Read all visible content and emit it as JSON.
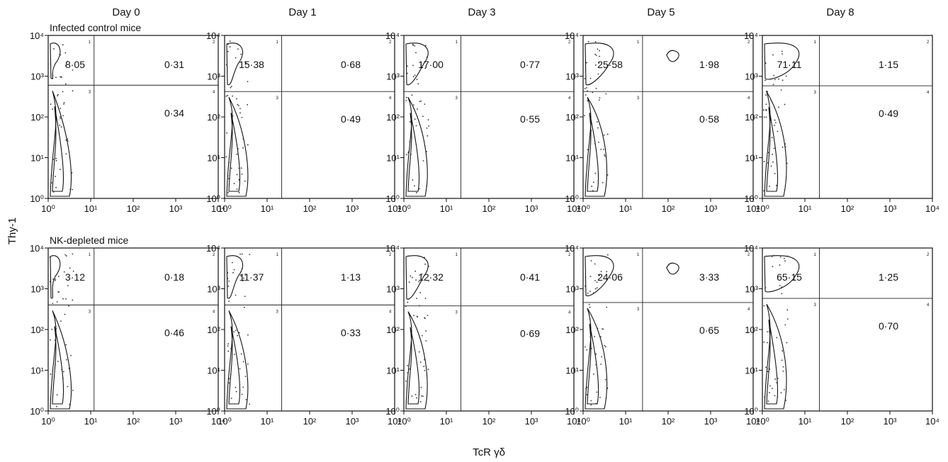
{
  "figure": {
    "y_axis_label": "Thy-1",
    "x_axis_label": "TcR γδ"
  },
  "days": [
    "Day 0",
    "Day 1",
    "Day 3",
    "Day 5",
    "Day 8"
  ],
  "groups": [
    "Infected control mice",
    "NK-depleted mice"
  ],
  "tick_labels": [
    "10⁰",
    "10¹",
    "10²",
    "10³",
    "10⁴"
  ],
  "quadrant_numbers": [
    "1",
    "2",
    "3",
    "4"
  ],
  "chart_data": {
    "type": "scatter",
    "description": "Flow cytometry contour plots, Thy-1 vs TcR γδ, log scales 10^0 to 10^4",
    "x_axis": {
      "label": "TcR γδ",
      "scale": "log",
      "range": [
        1,
        10000
      ]
    },
    "y_axis": {
      "label": "Thy-1",
      "scale": "log",
      "range": [
        1,
        10000
      ]
    },
    "panels": [
      {
        "group": "Infected control mice",
        "day": "Day 0",
        "q1": "8·05",
        "q2": "0·31",
        "q4": "0·34",
        "gate_x": 12,
        "gate_y": 600
      },
      {
        "group": "Infected control mice",
        "day": "Day 1",
        "q1": "15·38",
        "q2": "0·68",
        "q4": "0·49",
        "gate_x": 22,
        "gate_y": 420
      },
      {
        "group": "Infected control mice",
        "day": "Day 3",
        "q1": "17·00",
        "q2": "0·77",
        "q4": "0·55",
        "gate_x": 22,
        "gate_y": 420
      },
      {
        "group": "Infected control mice",
        "day": "Day 5",
        "q1": "25·58",
        "q2": "1·98",
        "q4": "0·58",
        "gate_x": 25,
        "gate_y": 420
      },
      {
        "group": "Infected control mice",
        "day": "Day 8",
        "q1": "71·11",
        "q2": "1·15",
        "q4": "0·49",
        "gate_x": 22,
        "gate_y": 580
      },
      {
        "group": "NK-depleted mice",
        "day": "Day 0",
        "q1": "3·12",
        "q2": "0·18",
        "q4": "0·46",
        "gate_x": 12,
        "gate_y": 400
      },
      {
        "group": "NK-depleted mice",
        "day": "Day 1",
        "q1": "11·37",
        "q2": "1·13",
        "q4": "0·33",
        "gate_x": 22,
        "gate_y": 400
      },
      {
        "group": "NK-depleted mice",
        "day": "Day 3",
        "q1": "12·32",
        "q2": "0·41",
        "q4": "0·69",
        "gate_x": 22,
        "gate_y": 380
      },
      {
        "group": "NK-depleted mice",
        "day": "Day 5",
        "q1": "24·06",
        "q2": "3·33",
        "q4": "0·65",
        "gate_x": 25,
        "gate_y": 460
      },
      {
        "group": "NK-depleted mice",
        "day": "Day 8",
        "q1": "65·15",
        "q2": "1·25",
        "q4": "0·70",
        "gate_x": 22,
        "gate_y": 580
      }
    ]
  }
}
